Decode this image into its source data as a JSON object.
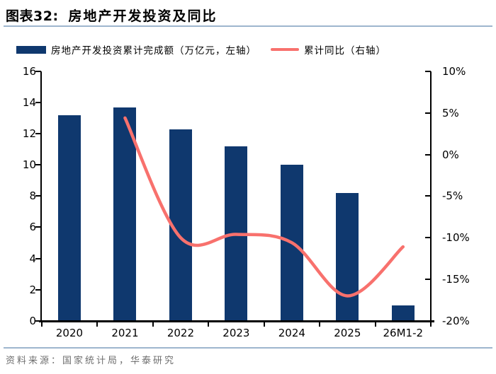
{
  "header": {
    "figure_label": "图表32:",
    "title": "房地产开发投资及同比"
  },
  "legend": {
    "bar_label": "房地产开发投资累计完成额（万亿元，左轴）",
    "line_label": "累计同比（右轴）"
  },
  "colors": {
    "bar": "#0f386e",
    "line": "#f8716d",
    "axis": "#000000",
    "divider": "#9eb6ce",
    "source_text": "#6f6f6f"
  },
  "chart_data": {
    "type": "bar",
    "subtype": "bar+smooth-line, dual axis",
    "categories": [
      "2020",
      "2021",
      "2022",
      "2023",
      "2024",
      "2025",
      "26M1-2"
    ],
    "series": [
      {
        "name": "房地产开发投资累计完成额（万亿元，左轴）",
        "type": "bar",
        "axis": "left",
        "values": [
          13.2,
          13.7,
          12.3,
          11.2,
          10.0,
          8.2,
          1.0
        ]
      },
      {
        "name": "累计同比（右轴）",
        "type": "line",
        "axis": "right",
        "values": [
          null,
          4.4,
          -10.0,
          -9.6,
          -10.6,
          -17.0,
          -11.1
        ]
      }
    ],
    "left_axis": {
      "min": 0,
      "max": 16,
      "step": 2,
      "tick_labels": [
        "0",
        "2",
        "4",
        "6",
        "8",
        "10",
        "12",
        "14",
        "16"
      ]
    },
    "right_axis": {
      "min": -20,
      "max": 10,
      "step": 5,
      "tick_labels": [
        "-20%",
        "-15%",
        "-10%",
        "-5%",
        "0%",
        "5%",
        "10%"
      ]
    },
    "grid": false,
    "legend_position": "top",
    "smooth_line": true,
    "title": "房地产开发投资及同比"
  },
  "source": {
    "text": "资料来源：国家统计局，华泰研究"
  }
}
